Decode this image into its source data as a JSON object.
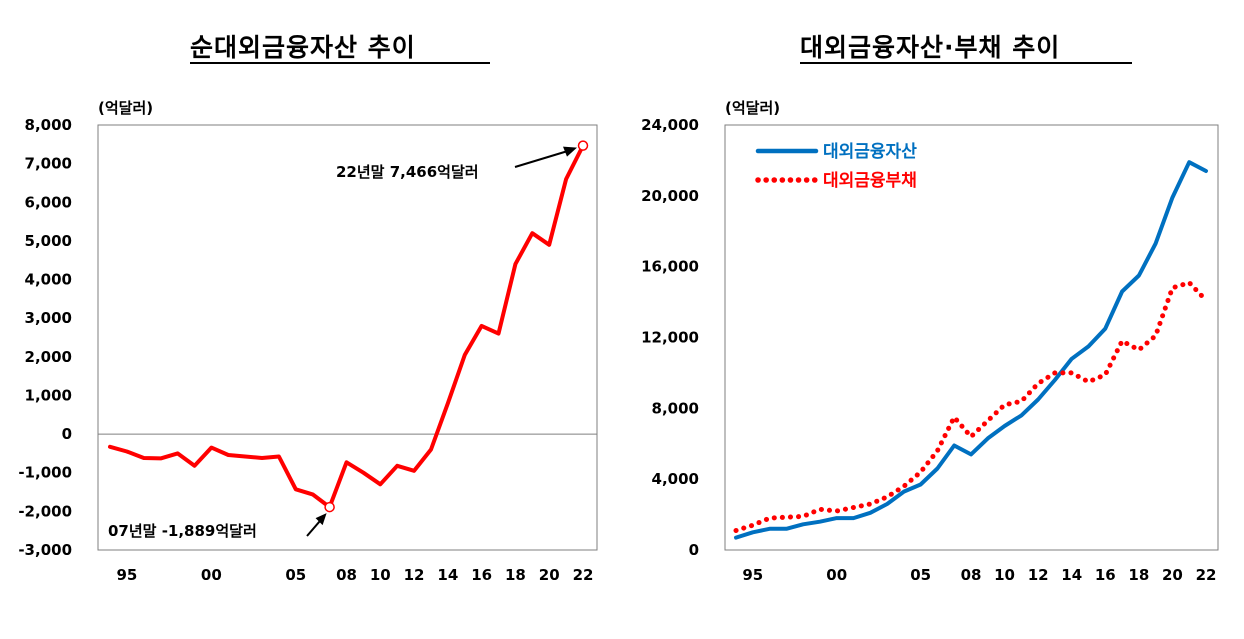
{
  "chart_data": [
    {
      "type": "line",
      "title": "순대외금융자산 추이",
      "unit_label": "(억달러)",
      "x": [
        1994,
        1995,
        1996,
        1997,
        1998,
        1999,
        2000,
        2001,
        2002,
        2003,
        2004,
        2005,
        2006,
        2007,
        2008,
        2009,
        2010,
        2011,
        2012,
        2013,
        2014,
        2015,
        2016,
        2017,
        2018,
        2019,
        2020,
        2021,
        2022
      ],
      "series": [
        {
          "name": "",
          "color": "#ff0000",
          "values": [
            -330,
            -450,
            -620,
            -630,
            -500,
            -820,
            -350,
            -540,
            -580,
            -620,
            -580,
            -1430,
            -1560,
            -1889,
            -730,
            -1000,
            -1300,
            -820,
            -950,
            -400,
            800,
            2050,
            2800,
            2600,
            4400,
            5200,
            4900,
            6600,
            7466
          ]
        }
      ],
      "ylim": [
        -3000,
        8000
      ],
      "yticks": [
        "-3,000",
        "-2,000",
        "-1,000",
        "0",
        "1,000",
        "2,000",
        "3,000",
        "4,000",
        "5,000",
        "6,000",
        "7,000",
        "8,000"
      ],
      "xtick_labels": [
        {
          "year": 1995,
          "label": "95"
        },
        {
          "year": 2000,
          "label": "00"
        },
        {
          "year": 2005,
          "label": "05"
        },
        {
          "year": 2008,
          "label": "08"
        },
        {
          "year": 2010,
          "label": "10"
        },
        {
          "year": 2012,
          "label": "12"
        },
        {
          "year": 2014,
          "label": "14"
        },
        {
          "year": 2016,
          "label": "16"
        },
        {
          "year": 2018,
          "label": "18"
        },
        {
          "year": 2020,
          "label": "20"
        },
        {
          "year": 2022,
          "label": "22"
        }
      ],
      "zero_line": true,
      "annotations": [
        {
          "label": "22년말 7,466억달러",
          "year": 2022,
          "value": 7466
        },
        {
          "label": "07년말 -1,889억달러",
          "year": 2007,
          "value": -1889
        }
      ]
    },
    {
      "type": "line",
      "title": "대외금융자산·부채 추이",
      "unit_label": "(억달러)",
      "x": [
        1994,
        1995,
        1996,
        1997,
        1998,
        1999,
        2000,
        2001,
        2002,
        2003,
        2004,
        2005,
        2006,
        2007,
        2008,
        2009,
        2010,
        2011,
        2012,
        2013,
        2014,
        2015,
        2016,
        2017,
        2018,
        2019,
        2020,
        2021,
        2022
      ],
      "series": [
        {
          "name": "대외금융자산",
          "color": "#0070c0",
          "style": "solid",
          "values": [
            700,
            1000,
            1200,
            1200,
            1450,
            1600,
            1800,
            1800,
            2100,
            2600,
            3300,
            3700,
            4600,
            5900,
            5400,
            6300,
            7000,
            7600,
            8500,
            9600,
            10800,
            11500,
            12500,
            14600,
            15500,
            17300,
            19900,
            21900,
            21400
          ]
        },
        {
          "name": "대외금융부채",
          "color": "#ff0000",
          "style": "dotted",
          "values": [
            1100,
            1400,
            1800,
            1850,
            1900,
            2300,
            2200,
            2400,
            2600,
            3000,
            3600,
            4400,
            5600,
            7500,
            6400,
            7300,
            8200,
            8400,
            9400,
            10000,
            10000,
            9500,
            9900,
            11800,
            11300,
            12100,
            14800,
            15100,
            14100
          ]
        }
      ],
      "ylim": [
        0,
        24000
      ],
      "yticks": [
        "0",
        "4,000",
        "8,000",
        "12,000",
        "16,000",
        "20,000",
        "24,000"
      ],
      "xtick_labels": [
        {
          "year": 1995,
          "label": "95"
        },
        {
          "year": 2000,
          "label": "00"
        },
        {
          "year": 2005,
          "label": "05"
        },
        {
          "year": 2008,
          "label": "08"
        },
        {
          "year": 2010,
          "label": "10"
        },
        {
          "year": 2012,
          "label": "12"
        },
        {
          "year": 2014,
          "label": "14"
        },
        {
          "year": 2016,
          "label": "16"
        },
        {
          "year": 2018,
          "label": "18"
        },
        {
          "year": 2020,
          "label": "20"
        },
        {
          "year": 2022,
          "label": "22"
        }
      ],
      "legend_position": "top-left"
    }
  ]
}
